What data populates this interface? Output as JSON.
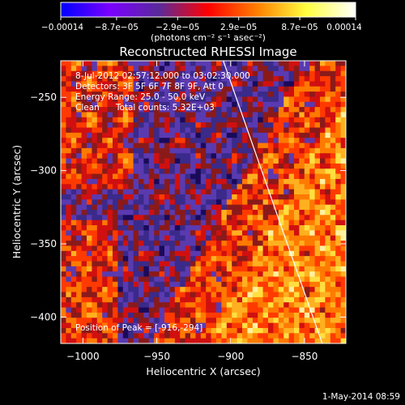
{
  "chart_data": {
    "type": "heatmap",
    "title": "Reconstructed RHESSI Image",
    "xlabel": "Heliocentric X (arcsec)",
    "ylabel": "Heliocentric Y (arcsec)",
    "xlim": [
      -1015,
      -822
    ],
    "ylim": [
      -418,
      -225
    ],
    "x_ticks": [
      -1000,
      -950,
      -900,
      -850
    ],
    "x_tick_labels": [
      "−1000",
      "−950",
      "−900",
      "−850"
    ],
    "y_ticks": [
      -250,
      -300,
      -350,
      -400
    ],
    "y_tick_labels": [
      "−250",
      "−300",
      "−350",
      "−400"
    ],
    "colorbar": {
      "range": [
        -0.00014,
        0.00014
      ],
      "ticks": [
        -0.00014,
        -8.7e-05,
        -2.9e-05,
        2.9e-05,
        8.7e-05,
        0.00014
      ],
      "tick_labels": [
        "−0.00014",
        "−8.7e−05",
        "−2.9e−05",
        "2.9e−05",
        "8.7e−05",
        "0.00014"
      ],
      "units_label": "(photons cm⁻² s⁻¹ asec⁻²)",
      "colors": [
        "#0000ff",
        "#7a00ff",
        "#5a2a9a",
        "#ff0000",
        "#ff8000",
        "#ffff40",
        "#ffffff"
      ]
    },
    "annotations": {
      "time_range": "8-Jul-2012 02:57:12.000 to 03:02:30.000",
      "detectors": "Detectors: 3F 5F 6F 7F 8F 9F, Att 0",
      "energy_range": "Energy Range: 25.0 - 50.0 keV",
      "clean_counts": "Clean      Total counts: 5.32E+03",
      "peak": "Position of Peak = [-916,-294]"
    },
    "limb_line": {
      "x": [
        -905,
        -838
      ],
      "y": [
        -225,
        -418
      ]
    },
    "grid_cells": 55
  },
  "footer": {
    "date": "1-May-2014 08:59"
  }
}
